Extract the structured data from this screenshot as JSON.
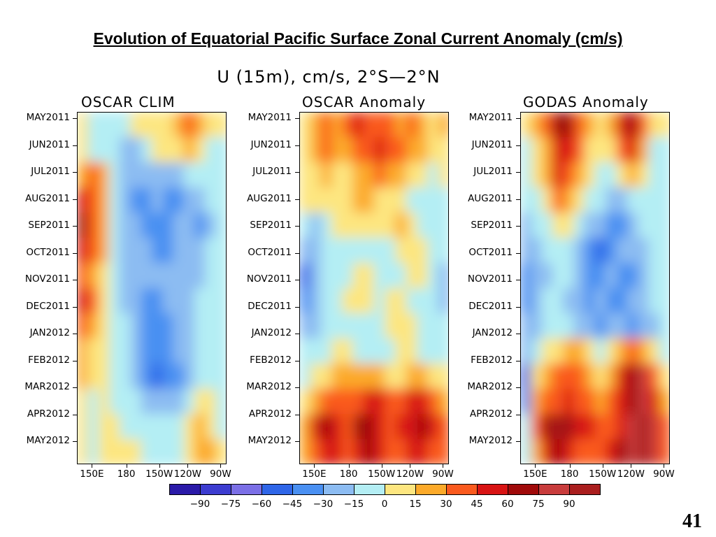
{
  "slide_title": "Evolution of Equatorial Pacific Surface Zonal Current Anomaly (cm/s)",
  "page_number": "41",
  "chart_data": {
    "type": "heatmap",
    "title": "U (15m), cm/s, 2°S—2°N",
    "y_ticks": [
      "MAY2011",
      "JUN2011",
      "JUL2011",
      "AUG2011",
      "SEP2011",
      "OCT2011",
      "NOV2011",
      "DEC2011",
      "JAN2012",
      "FEB2012",
      "MAR2012",
      "APR2012",
      "MAY2012"
    ],
    "x_ticks": [
      "150E",
      "180",
      "150W",
      "120W",
      "90W"
    ],
    "colorbar": {
      "labels": [
        "-90",
        "-75",
        "-60",
        "-45",
        "-30",
        "-15",
        "0",
        "15",
        "30",
        "45",
        "60",
        "75",
        "90"
      ],
      "colors": [
        "#2a1aa8",
        "#3c3cd0",
        "#7b6fe6",
        "#2f66e8",
        "#4a90f2",
        "#8cbcf2",
        "#b4eef4",
        "#fde680",
        "#fcaa2a",
        "#fa5a1e",
        "#d81414",
        "#a00a0a",
        "#c83c3c",
        "#aa1e1e"
      ]
    },
    "panels": [
      {
        "title": "OSCAR CLIM",
        "grid": [
          [
            7,
            6,
            6,
            6,
            6,
            7,
            7,
            7,
            7,
            8,
            9,
            8,
            7,
            7
          ],
          [
            7,
            6,
            6,
            6,
            5,
            5,
            6,
            7,
            7,
            7,
            8,
            7,
            6,
            6
          ],
          [
            8,
            9,
            8,
            6,
            5,
            5,
            5,
            5,
            5,
            5,
            6,
            6,
            6,
            6
          ],
          [
            10,
            9,
            8,
            6,
            5,
            4,
            4,
            5,
            4,
            4,
            5,
            5,
            6,
            6
          ],
          [
            11,
            9,
            8,
            6,
            5,
            5,
            4,
            4,
            4,
            5,
            5,
            4,
            5,
            6
          ],
          [
            10,
            9,
            8,
            6,
            5,
            5,
            5,
            4,
            4,
            5,
            5,
            5,
            6,
            6
          ],
          [
            9,
            8,
            7,
            6,
            5,
            5,
            5,
            5,
            5,
            5,
            5,
            5,
            6,
            6
          ],
          [
            10,
            9,
            7,
            6,
            5,
            5,
            4,
            4,
            5,
            5,
            5,
            6,
            6,
            6
          ],
          [
            9,
            8,
            7,
            6,
            6,
            5,
            4,
            4,
            4,
            5,
            5,
            6,
            6,
            6
          ],
          [
            8,
            7,
            7,
            6,
            6,
            5,
            4,
            4,
            4,
            5,
            5,
            6,
            6,
            6
          ],
          [
            8,
            7,
            7,
            6,
            6,
            5,
            4,
            3,
            4,
            4,
            5,
            6,
            6,
            6
          ],
          [
            7,
            6,
            7,
            6,
            6,
            6,
            5,
            5,
            5,
            5,
            6,
            7,
            7,
            6
          ],
          [
            7,
            6,
            7,
            7,
            6,
            6,
            6,
            6,
            6,
            6,
            7,
            8,
            7,
            6
          ],
          [
            7,
            6,
            7,
            7,
            7,
            7,
            6,
            6,
            6,
            6,
            7,
            8,
            8,
            7
          ]
        ]
      },
      {
        "title": "OSCAR Anomaly",
        "grid": [
          [
            7,
            8,
            9,
            8,
            9,
            10,
            9,
            9,
            9,
            8,
            9,
            8,
            7,
            8
          ],
          [
            7,
            8,
            9,
            8,
            8,
            9,
            9,
            10,
            9,
            9,
            8,
            8,
            7,
            7
          ],
          [
            7,
            7,
            8,
            7,
            7,
            8,
            8,
            9,
            8,
            8,
            7,
            7,
            6,
            7
          ],
          [
            7,
            7,
            7,
            7,
            7,
            8,
            8,
            7,
            7,
            7,
            6,
            6,
            6,
            6
          ],
          [
            6,
            5,
            6,
            7,
            7,
            7,
            7,
            7,
            7,
            8,
            7,
            6,
            6,
            6
          ],
          [
            5,
            5,
            6,
            6,
            6,
            6,
            6,
            6,
            6,
            7,
            7,
            7,
            6,
            6
          ],
          [
            3,
            5,
            6,
            6,
            6,
            7,
            7,
            6,
            6,
            6,
            7,
            7,
            6,
            5
          ],
          [
            4,
            5,
            6,
            6,
            7,
            7,
            7,
            6,
            7,
            7,
            6,
            6,
            6,
            5
          ],
          [
            5,
            5,
            6,
            6,
            6,
            6,
            6,
            6,
            7,
            7,
            7,
            6,
            6,
            6
          ],
          [
            6,
            6,
            6,
            7,
            7,
            6,
            6,
            6,
            6,
            7,
            7,
            6,
            6,
            6
          ],
          [
            6,
            7,
            7,
            8,
            8,
            8,
            8,
            8,
            7,
            7,
            8,
            8,
            7,
            7
          ],
          [
            7,
            8,
            9,
            9,
            9,
            9,
            10,
            10,
            9,
            9,
            10,
            10,
            9,
            8
          ],
          [
            8,
            10,
            11,
            10,
            9,
            11,
            11,
            10,
            9,
            10,
            10,
            11,
            10,
            9
          ],
          [
            8,
            9,
            10,
            10,
            9,
            10,
            11,
            10,
            9,
            9,
            10,
            10,
            9,
            9
          ]
        ]
      },
      {
        "title": "GODAS Anomaly",
        "grid": [
          [
            7,
            8,
            9,
            11,
            11,
            9,
            8,
            7,
            8,
            10,
            11,
            9,
            7,
            7
          ],
          [
            6,
            7,
            8,
            10,
            10,
            9,
            7,
            7,
            7,
            9,
            10,
            8,
            6,
            6
          ],
          [
            6,
            7,
            8,
            10,
            9,
            8,
            7,
            6,
            6,
            7,
            8,
            7,
            6,
            6
          ],
          [
            6,
            6,
            7,
            9,
            8,
            7,
            6,
            6,
            5,
            5,
            6,
            6,
            6,
            6
          ],
          [
            5,
            6,
            6,
            7,
            7,
            6,
            5,
            5,
            4,
            4,
            5,
            6,
            6,
            6
          ],
          [
            5,
            5,
            6,
            6,
            6,
            5,
            4,
            3,
            4,
            5,
            5,
            5,
            6,
            6
          ],
          [
            4,
            5,
            5,
            6,
            6,
            5,
            4,
            4,
            5,
            4,
            4,
            5,
            6,
            6
          ],
          [
            4,
            5,
            6,
            6,
            5,
            5,
            4,
            5,
            4,
            4,
            5,
            5,
            6,
            6
          ],
          [
            5,
            5,
            6,
            6,
            6,
            5,
            5,
            4,
            5,
            5,
            4,
            5,
            5,
            6
          ],
          [
            5,
            6,
            7,
            7,
            8,
            8,
            7,
            6,
            7,
            8,
            9,
            8,
            7,
            6
          ],
          [
            3,
            7,
            8,
            9,
            9,
            9,
            8,
            7,
            8,
            10,
            11,
            12,
            9,
            7
          ],
          [
            4,
            8,
            9,
            9,
            10,
            9,
            9,
            8,
            9,
            10,
            11,
            12,
            10,
            8
          ],
          [
            6,
            9,
            11,
            13,
            11,
            10,
            10,
            9,
            9,
            10,
            12,
            13,
            12,
            9
          ],
          [
            6,
            8,
            10,
            11,
            10,
            9,
            9,
            9,
            10,
            11,
            12,
            13,
            12,
            9
          ]
        ]
      }
    ]
  }
}
